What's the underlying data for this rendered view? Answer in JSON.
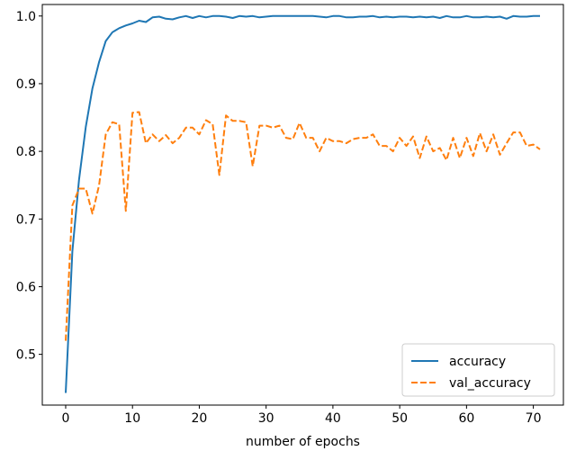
{
  "chart_data": {
    "type": "line",
    "title": "",
    "xlabel": "number of epochs",
    "ylabel": "",
    "xlim": [
      -3.5,
      74.5
    ],
    "ylim": [
      0.425,
      1.017
    ],
    "x_ticks": [
      0,
      10,
      20,
      30,
      40,
      50,
      60,
      70
    ],
    "y_ticks": [
      0.5,
      0.6,
      0.7,
      0.8,
      0.9,
      1.0
    ],
    "x_tick_labels": [
      "0",
      "10",
      "20",
      "30",
      "40",
      "50",
      "60",
      "70"
    ],
    "y_tick_labels": [
      "0.5",
      "0.6",
      "0.7",
      "0.8",
      "0.9",
      "1.0"
    ],
    "grid": false,
    "legend_position": "lower-right",
    "x": [
      0,
      1,
      2,
      3,
      4,
      5,
      6,
      7,
      8,
      9,
      10,
      11,
      12,
      13,
      14,
      15,
      16,
      17,
      18,
      19,
      20,
      21,
      22,
      23,
      24,
      25,
      26,
      27,
      28,
      29,
      30,
      31,
      32,
      33,
      34,
      35,
      36,
      37,
      38,
      39,
      40,
      41,
      42,
      43,
      44,
      45,
      46,
      47,
      48,
      49,
      50,
      51,
      52,
      53,
      54,
      55,
      56,
      57,
      58,
      59,
      60,
      61,
      62,
      63,
      64,
      65,
      66,
      67,
      68,
      69,
      70,
      71
    ],
    "series": [
      {
        "name": "accuracy",
        "color": "#1f77b4",
        "style": "solid",
        "values": [
          0.443,
          0.652,
          0.758,
          0.836,
          0.893,
          0.932,
          0.963,
          0.976,
          0.982,
          0.986,
          0.989,
          0.993,
          0.991,
          0.998,
          0.999,
          0.996,
          0.995,
          0.998,
          1.0,
          0.997,
          1.0,
          0.998,
          1.0,
          1.0,
          0.999,
          0.997,
          1.0,
          0.999,
          1.0,
          0.998,
          0.999,
          1.0,
          1.0,
          1.0,
          1.0,
          1.0,
          1.0,
          1.0,
          0.999,
          0.998,
          1.0,
          1.0,
          0.998,
          0.998,
          0.999,
          0.999,
          1.0,
          0.998,
          0.999,
          0.998,
          0.999,
          0.999,
          0.998,
          0.999,
          0.998,
          0.999,
          0.997,
          1.0,
          0.998,
          0.998,
          1.0,
          0.998,
          0.998,
          0.999,
          0.998,
          0.999,
          0.996,
          1.0,
          0.999,
          0.999,
          1.0,
          1.0
        ]
      },
      {
        "name": "val_accuracy",
        "color": "#ff7f0e",
        "style": "dashed",
        "values": [
          0.52,
          0.72,
          0.745,
          0.745,
          0.708,
          0.75,
          0.825,
          0.843,
          0.84,
          0.712,
          0.857,
          0.858,
          0.812,
          0.825,
          0.815,
          0.824,
          0.812,
          0.82,
          0.835,
          0.835,
          0.825,
          0.846,
          0.84,
          0.765,
          0.853,
          0.845,
          0.845,
          0.843,
          0.778,
          0.838,
          0.838,
          0.835,
          0.838,
          0.82,
          0.818,
          0.842,
          0.82,
          0.82,
          0.8,
          0.82,
          0.815,
          0.815,
          0.812,
          0.818,
          0.82,
          0.82,
          0.825,
          0.808,
          0.808,
          0.8,
          0.82,
          0.808,
          0.822,
          0.79,
          0.822,
          0.8,
          0.805,
          0.787,
          0.82,
          0.79,
          0.82,
          0.793,
          0.827,
          0.8,
          0.825,
          0.795,
          0.812,
          0.828,
          0.828,
          0.808,
          0.81,
          0.803
        ]
      }
    ]
  }
}
